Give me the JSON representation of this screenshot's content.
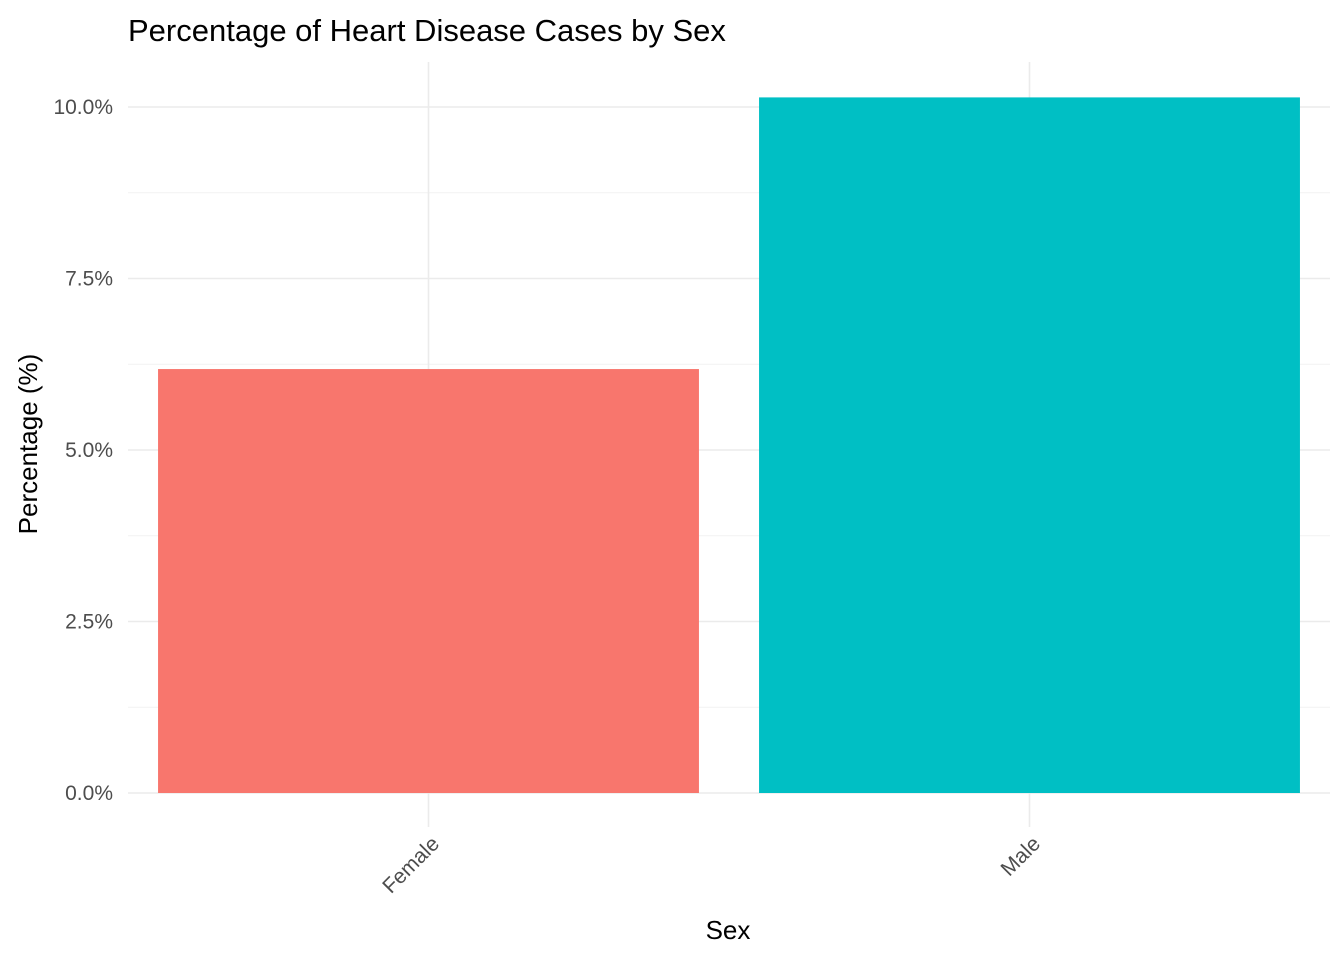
{
  "chart_data": {
    "type": "bar",
    "title": "Percentage of Heart Disease Cases by Sex",
    "xlabel": "Sex",
    "ylabel": "Percentage (%)",
    "categories": [
      "Female",
      "Male"
    ],
    "values": [
      6.18,
      10.14
    ],
    "colors": [
      "#F8766D",
      "#00BFC4"
    ],
    "ylim": [
      0,
      10.5
    ],
    "yticks": [
      0,
      2.5,
      5,
      7.5,
      10
    ],
    "ytick_labels": [
      "0.0%",
      "2.5%",
      "5.0%",
      "7.5%",
      "10.0%"
    ],
    "grid": true,
    "legend": "none"
  }
}
